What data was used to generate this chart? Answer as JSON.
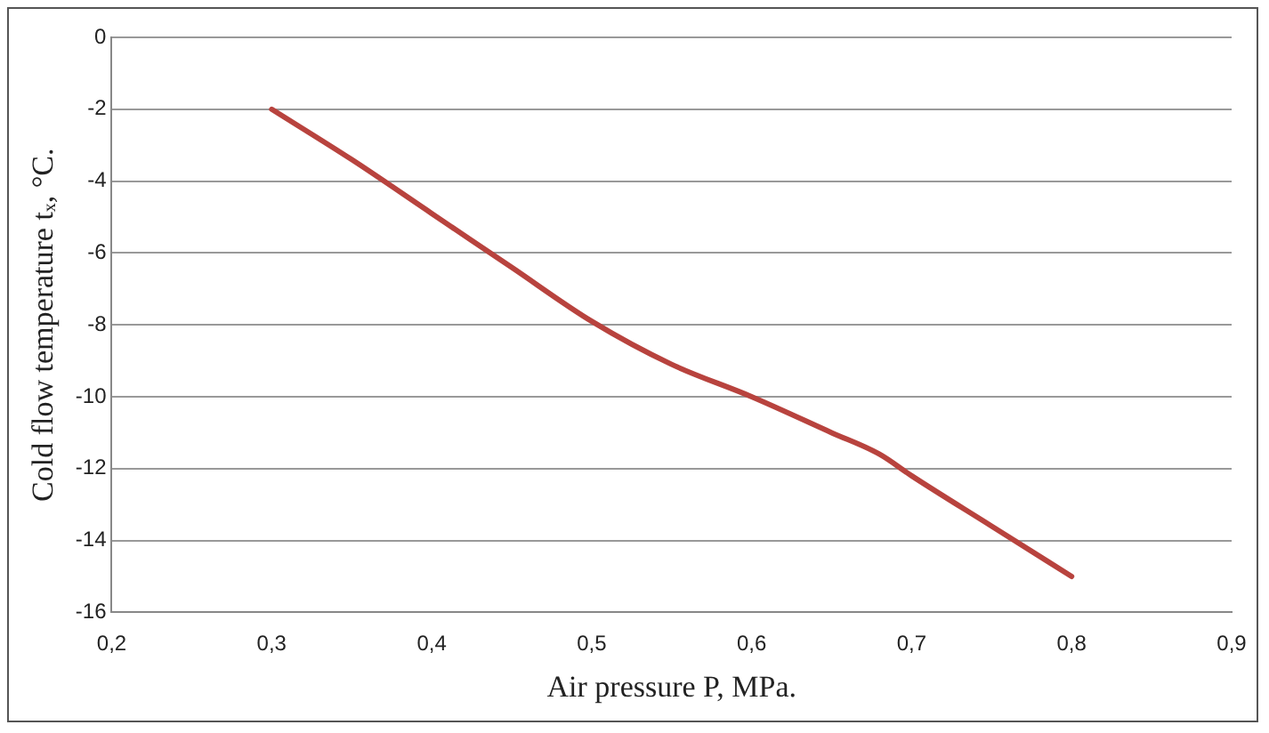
{
  "chart_data": {
    "type": "line",
    "xlabel": "Air pressure P, MPa.",
    "ylabel": "Cold flow temperature tₓ, °C.",
    "x": [
      0.3,
      0.35,
      0.4,
      0.45,
      0.5,
      0.55,
      0.6,
      0.65,
      0.68,
      0.7,
      0.75,
      0.8
    ],
    "series": [
      {
        "color": "#b8433e",
        "values": [
          -2,
          -3.4,
          -4.9,
          -6.4,
          -7.9,
          -9.1,
          -10,
          -11,
          -11.6,
          -12.2,
          -13.6,
          -15
        ]
      }
    ],
    "xlim": [
      0.2,
      0.9
    ],
    "xticks": [
      {
        "value": 0.2,
        "label": "0,2"
      },
      {
        "value": 0.3,
        "label": "0,3"
      },
      {
        "value": 0.4,
        "label": "0,4"
      },
      {
        "value": 0.5,
        "label": "0,5"
      },
      {
        "value": 0.6,
        "label": "0,6"
      },
      {
        "value": 0.7,
        "label": "0,7"
      },
      {
        "value": 0.8,
        "label": "0,8"
      },
      {
        "value": 0.9,
        "label": "0,9"
      }
    ],
    "ylim": [
      -16,
      0
    ],
    "yticks": [
      -16,
      -14,
      -12,
      -10,
      -8,
      -6,
      -4,
      -2,
      0
    ],
    "grid": "y",
    "legend": false,
    "marker": "none",
    "line_style": "solid"
  }
}
